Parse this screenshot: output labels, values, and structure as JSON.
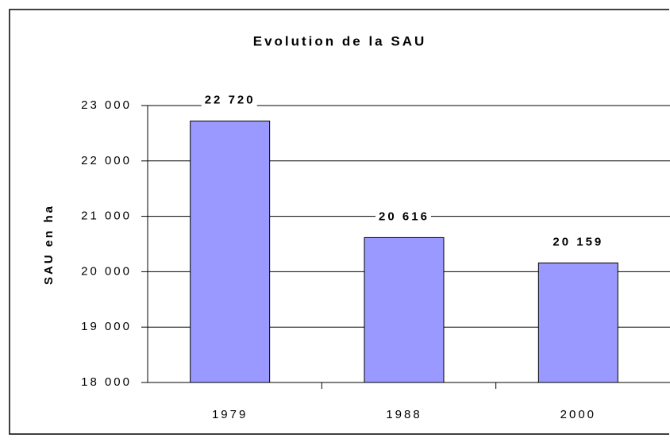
{
  "chart_data": {
    "type": "bar",
    "title": "Evolution de la SAU",
    "y_label": "SAU en ha",
    "categories": [
      "1979",
      "1988",
      "2000"
    ],
    "values": [
      22720,
      20616,
      20159
    ],
    "value_labels": [
      "22 720",
      "20 616",
      "20 159"
    ],
    "color": "#9999ff",
    "ylim": [
      18000,
      23000
    ],
    "yticks": [
      {
        "value": 18000,
        "label": "18 000"
      },
      {
        "value": 19000,
        "label": "19 000"
      },
      {
        "value": 20000,
        "label": "20 000"
      },
      {
        "value": 21000,
        "label": "21 000"
      },
      {
        "value": 22000,
        "label": "22 000"
      },
      {
        "value": 23000,
        "label": "23 000"
      }
    ],
    "grid": true
  }
}
